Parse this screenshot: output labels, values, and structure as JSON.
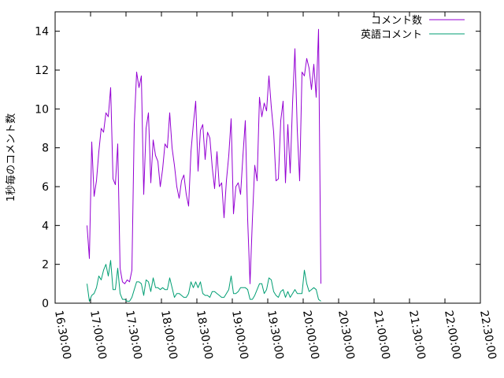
{
  "chart_data": {
    "type": "line",
    "title": "",
    "xlabel": "",
    "ylabel": "1秒毎のコメント数",
    "x_ticks": [
      "16:30:00",
      "17:00:00",
      "17:30:00",
      "18:00:00",
      "18:30:00",
      "19:00:00",
      "19:30:00",
      "20:00:00",
      "20:30:00",
      "21:00:00",
      "21:30:00",
      "22:00:00",
      "22:30:00"
    ],
    "xlim": [
      "16:30:00",
      "22:30:00"
    ],
    "y_ticks": [
      0,
      2,
      4,
      6,
      8,
      10,
      12,
      14
    ],
    "ylim": [
      0,
      15
    ],
    "grid": false,
    "legend_position": "top-right",
    "series": [
      {
        "name": "コメント数",
        "color": "#9400d3",
        "points": [
          [
            "16:57:00",
            4.0
          ],
          [
            "16:59:00",
            2.3
          ],
          [
            "17:01:00",
            8.3
          ],
          [
            "17:03:00",
            5.5
          ],
          [
            "17:05:00",
            6.3
          ],
          [
            "17:07:00",
            7.8
          ],
          [
            "17:09:00",
            9.0
          ],
          [
            "17:11:00",
            8.8
          ],
          [
            "17:13:00",
            9.8
          ],
          [
            "17:15:00",
            9.6
          ],
          [
            "17:17:00",
            11.1
          ],
          [
            "17:19:00",
            6.4
          ],
          [
            "17:21:00",
            6.1
          ],
          [
            "17:23:00",
            8.2
          ],
          [
            "17:25:00",
            1.8
          ],
          [
            "17:27:00",
            1.1
          ],
          [
            "17:29:00",
            1.0
          ],
          [
            "17:31:00",
            1.2
          ],
          [
            "17:33:00",
            1.1
          ],
          [
            "17:35:00",
            1.7
          ],
          [
            "17:37:00",
            9.2
          ],
          [
            "17:39:00",
            11.9
          ],
          [
            "17:41:00",
            11.1
          ],
          [
            "17:43:00",
            11.7
          ],
          [
            "17:45:00",
            5.6
          ],
          [
            "17:47:00",
            9.0
          ],
          [
            "17:49:00",
            9.8
          ],
          [
            "17:51:00",
            6.2
          ],
          [
            "17:53:00",
            8.4
          ],
          [
            "17:55:00",
            7.6
          ],
          [
            "17:57:00",
            7.3
          ],
          [
            "17:59:00",
            6.0
          ],
          [
            "18:01:00",
            6.9
          ],
          [
            "18:03:00",
            8.2
          ],
          [
            "18:05:00",
            8.0
          ],
          [
            "18:07:00",
            9.8
          ],
          [
            "18:09:00",
            8.0
          ],
          [
            "18:11:00",
            7.1
          ],
          [
            "18:13:00",
            6.0
          ],
          [
            "18:15:00",
            5.4
          ],
          [
            "18:17:00",
            6.3
          ],
          [
            "18:19:00",
            6.6
          ],
          [
            "18:21:00",
            5.6
          ],
          [
            "18:23:00",
            5.0
          ],
          [
            "18:25:00",
            7.8
          ],
          [
            "18:27:00",
            9.2
          ],
          [
            "18:29:00",
            10.4
          ],
          [
            "18:31:00",
            6.8
          ],
          [
            "18:33:00",
            8.9
          ],
          [
            "18:35:00",
            9.2
          ],
          [
            "18:37:00",
            7.4
          ],
          [
            "18:39:00",
            8.8
          ],
          [
            "18:41:00",
            8.5
          ],
          [
            "18:43:00",
            7.0
          ],
          [
            "18:45:00",
            5.9
          ],
          [
            "18:47:00",
            7.8
          ],
          [
            "18:49:00",
            6.0
          ],
          [
            "18:51:00",
            6.2
          ],
          [
            "18:53:00",
            4.4
          ],
          [
            "18:55:00",
            6.3
          ],
          [
            "18:57:00",
            7.6
          ],
          [
            "18:59:00",
            9.5
          ],
          [
            "19:01:00",
            4.6
          ],
          [
            "19:03:00",
            6.0
          ],
          [
            "19:05:00",
            6.2
          ],
          [
            "19:07:00",
            5.6
          ],
          [
            "19:09:00",
            7.6
          ],
          [
            "19:11:00",
            9.4
          ],
          [
            "19:13:00",
            4.3
          ],
          [
            "19:15:00",
            1.0
          ],
          [
            "19:17:00",
            4.3
          ],
          [
            "19:19:00",
            7.1
          ],
          [
            "19:21:00",
            6.3
          ],
          [
            "19:23:00",
            10.6
          ],
          [
            "19:25:00",
            9.6
          ],
          [
            "19:27:00",
            10.3
          ],
          [
            "19:29:00",
            9.9
          ],
          [
            "19:31:00",
            11.7
          ],
          [
            "19:33:00",
            10.1
          ],
          [
            "19:35:00",
            8.8
          ],
          [
            "19:37:00",
            6.3
          ],
          [
            "19:39:00",
            6.4
          ],
          [
            "19:41:00",
            9.4
          ],
          [
            "19:43:00",
            10.4
          ],
          [
            "19:45:00",
            6.2
          ],
          [
            "19:47:00",
            9.2
          ],
          [
            "19:49:00",
            6.7
          ],
          [
            "19:51:00",
            10.3
          ],
          [
            "19:53:00",
            13.1
          ],
          [
            "19:55:00",
            8.9
          ],
          [
            "19:57:00",
            6.3
          ],
          [
            "19:59:00",
            11.9
          ],
          [
            "20:01:00",
            11.7
          ],
          [
            "20:03:00",
            12.6
          ],
          [
            "20:05:00",
            12.1
          ],
          [
            "20:07:00",
            11.0
          ],
          [
            "20:09:00",
            12.3
          ],
          [
            "20:11:00",
            10.6
          ],
          [
            "20:13:00",
            14.1
          ],
          [
            "20:15:00",
            1.0
          ]
        ]
      },
      {
        "name": "英語コメント",
        "color": "#009e73",
        "points": [
          [
            "16:57:00",
            1.0
          ],
          [
            "16:59:00",
            0.1
          ],
          [
            "17:01:00",
            0.4
          ],
          [
            "17:03:00",
            0.5
          ],
          [
            "17:05:00",
            0.8
          ],
          [
            "17:07:00",
            1.4
          ],
          [
            "17:09:00",
            1.2
          ],
          [
            "17:11:00",
            1.7
          ],
          [
            "17:13:00",
            2.0
          ],
          [
            "17:15:00",
            1.4
          ],
          [
            "17:17:00",
            2.2
          ],
          [
            "17:19:00",
            0.7
          ],
          [
            "17:21:00",
            0.7
          ],
          [
            "17:23:00",
            1.8
          ],
          [
            "17:25:00",
            0.5
          ],
          [
            "17:27:00",
            0.2
          ],
          [
            "17:29:00",
            0.2
          ],
          [
            "17:31:00",
            0.1
          ],
          [
            "17:33:00",
            0.1
          ],
          [
            "17:35:00",
            0.3
          ],
          [
            "17:37:00",
            0.7
          ],
          [
            "17:39:00",
            1.1
          ],
          [
            "17:41:00",
            1.1
          ],
          [
            "17:43:00",
            1.0
          ],
          [
            "17:45:00",
            0.4
          ],
          [
            "17:47:00",
            1.2
          ],
          [
            "17:49:00",
            1.1
          ],
          [
            "17:51:00",
            0.6
          ],
          [
            "17:53:00",
            1.3
          ],
          [
            "17:55:00",
            0.8
          ],
          [
            "17:57:00",
            0.8
          ],
          [
            "17:59:00",
            0.7
          ],
          [
            "18:01:00",
            0.8
          ],
          [
            "18:03:00",
            0.7
          ],
          [
            "18:05:00",
            0.7
          ],
          [
            "18:07:00",
            1.3
          ],
          [
            "18:09:00",
            0.8
          ],
          [
            "18:11:00",
            0.3
          ],
          [
            "18:13:00",
            0.5
          ],
          [
            "18:15:00",
            0.5
          ],
          [
            "18:17:00",
            0.4
          ],
          [
            "18:19:00",
            0.3
          ],
          [
            "18:21:00",
            0.3
          ],
          [
            "18:23:00",
            0.5
          ],
          [
            "18:25:00",
            1.1
          ],
          [
            "18:27:00",
            0.8
          ],
          [
            "18:29:00",
            1.1
          ],
          [
            "18:31:00",
            0.8
          ],
          [
            "18:33:00",
            1.1
          ],
          [
            "18:35:00",
            0.5
          ],
          [
            "18:37:00",
            0.4
          ],
          [
            "18:39:00",
            0.4
          ],
          [
            "18:41:00",
            0.3
          ],
          [
            "18:43:00",
            0.6
          ],
          [
            "18:45:00",
            0.6
          ],
          [
            "18:47:00",
            0.5
          ],
          [
            "18:49:00",
            0.4
          ],
          [
            "18:51:00",
            0.3
          ],
          [
            "18:53:00",
            0.3
          ],
          [
            "18:55:00",
            0.5
          ],
          [
            "18:57:00",
            0.7
          ],
          [
            "18:59:00",
            1.4
          ],
          [
            "19:01:00",
            0.5
          ],
          [
            "19:03:00",
            0.5
          ],
          [
            "19:05:00",
            0.6
          ],
          [
            "19:07:00",
            0.8
          ],
          [
            "19:09:00",
            0.8
          ],
          [
            "19:11:00",
            0.8
          ],
          [
            "19:13:00",
            0.7
          ],
          [
            "19:15:00",
            0.2
          ],
          [
            "19:17:00",
            0.2
          ],
          [
            "19:19:00",
            0.4
          ],
          [
            "19:21:00",
            0.7
          ],
          [
            "19:23:00",
            1.0
          ],
          [
            "19:25:00",
            1.0
          ],
          [
            "19:27:00",
            0.5
          ],
          [
            "19:29:00",
            0.7
          ],
          [
            "19:31:00",
            1.3
          ],
          [
            "19:33:00",
            1.2
          ],
          [
            "19:35:00",
            0.6
          ],
          [
            "19:37:00",
            0.4
          ],
          [
            "19:39:00",
            0.3
          ],
          [
            "19:41:00",
            0.6
          ],
          [
            "19:43:00",
            0.7
          ],
          [
            "19:45:00",
            0.3
          ],
          [
            "19:47:00",
            0.6
          ],
          [
            "19:49:00",
            0.3
          ],
          [
            "19:51:00",
            0.5
          ],
          [
            "19:53:00",
            0.7
          ],
          [
            "19:55:00",
            0.5
          ],
          [
            "19:57:00",
            0.5
          ],
          [
            "19:59:00",
            0.5
          ],
          [
            "20:01:00",
            1.7
          ],
          [
            "20:03:00",
            1.0
          ],
          [
            "20:05:00",
            0.6
          ],
          [
            "20:07:00",
            0.7
          ],
          [
            "20:09:00",
            0.8
          ],
          [
            "20:11:00",
            0.7
          ],
          [
            "20:13:00",
            0.2
          ],
          [
            "20:15:00",
            0.1
          ]
        ]
      }
    ]
  }
}
